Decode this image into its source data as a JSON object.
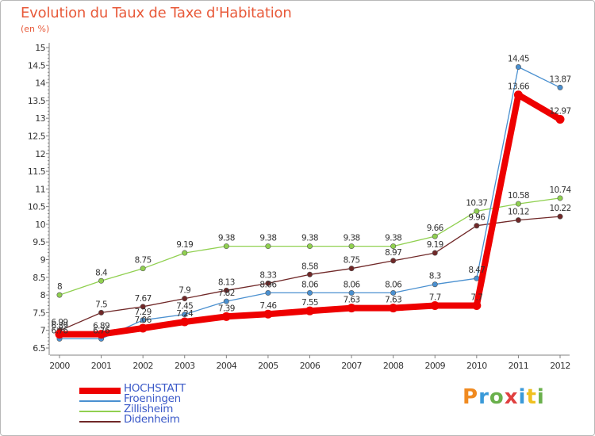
{
  "title": "Evolution du Taux de Taxe d'Habitation",
  "subtitle": "(en %)",
  "logo": {
    "text": "Proxiti",
    "colors": [
      "#f08a20",
      "#3a9ad9",
      "#6ab04c",
      "#e04040",
      "#3a9ad9",
      "#f0c020",
      "#6ab04c"
    ]
  },
  "chart_data": {
    "type": "line",
    "title": "Evolution du Taux de Taxe d'Habitation",
    "subtitle": "(en %)",
    "xlabel": "",
    "ylabel": "",
    "x": [
      "2000",
      "2001",
      "2002",
      "2003",
      "2004",
      "2005",
      "2006",
      "2007",
      "2008",
      "2009",
      "2010",
      "2011",
      "2012"
    ],
    "ylim": [
      6.5,
      15
    ],
    "yticks": [
      "6.5",
      "7",
      "7.5",
      "8",
      "8.5",
      "9",
      "9.5",
      "10",
      "10.5",
      "11",
      "11.5",
      "12",
      "12.5",
      "13",
      "13.5",
      "14",
      "14.5",
      "15"
    ],
    "grid": false,
    "legend_position": "bottom-left",
    "series": [
      {
        "name": "HOCHSTATT",
        "color": "#ee0000",
        "values": [
          6.89,
          6.89,
          7.06,
          7.24,
          7.39,
          7.46,
          7.55,
          7.63,
          7.63,
          7.7,
          7.7,
          13.66,
          12.97
        ],
        "labels": [
          "6.89",
          "6.89",
          "7.06",
          "7.24",
          "7.39",
          "7.46",
          "7.55",
          "7.63",
          "7.63",
          "7.7",
          "7.7",
          "13.66",
          "12.97"
        ]
      },
      {
        "name": "Froeningen",
        "color": "#4a90d0",
        "values": [
          6.76,
          6.76,
          7.29,
          7.45,
          7.82,
          8.06,
          8.06,
          8.06,
          8.06,
          8.3,
          8.47,
          14.45,
          13.87
        ],
        "labels": [
          "6.76",
          "6.76",
          "7.29",
          "7.45",
          "7.82",
          "8.06",
          "8.06",
          "8.06",
          "8.06",
          "8.3",
          "8.47",
          "14.45",
          "13.87"
        ]
      },
      {
        "name": "Zillisheim",
        "color": "#90d050",
        "values": [
          8,
          8.4,
          8.75,
          9.19,
          9.38,
          9.38,
          9.38,
          9.38,
          9.38,
          9.66,
          10.37,
          10.58,
          10.74
        ],
        "labels": [
          "8",
          "8.4",
          "8.75",
          "9.19",
          "9.38",
          "9.38",
          "9.38",
          "9.38",
          "9.38",
          "9.66",
          "10.37",
          "10.58",
          "10.74"
        ]
      },
      {
        "name": "Didenheim",
        "color": "#702828",
        "values": [
          6.99,
          7.5,
          7.67,
          7.9,
          8.13,
          8.33,
          8.58,
          8.75,
          8.97,
          9.19,
          9.96,
          10.12,
          10.22
        ],
        "labels": [
          "6.99",
          "7.5",
          "7.67",
          "7.9",
          "8.13",
          "8.33",
          "8.58",
          "8.75",
          "8.97",
          "9.19",
          "9.96",
          "10.12",
          "10.22"
        ]
      }
    ]
  }
}
